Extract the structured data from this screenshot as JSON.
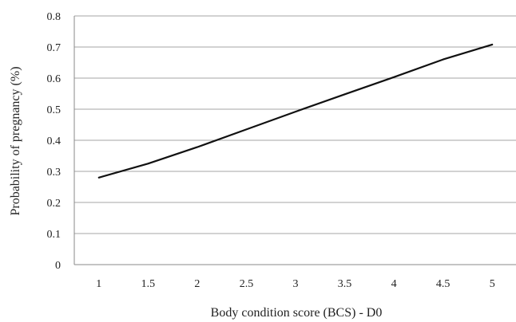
{
  "chart_data": {
    "type": "line",
    "xlabel": "Body condition score (BCS) - D0",
    "ylabel": "Probability of pregnancy (%)",
    "xlim": [
      0.75,
      5.25
    ],
    "ylim": [
      0,
      0.8
    ],
    "x_ticks": [
      "1",
      "1.5",
      "2",
      "2.5",
      "3",
      "3.5",
      "4",
      "4.5",
      "5"
    ],
    "y_ticks": [
      "0",
      "0.1",
      "0.2",
      "0.3",
      "0.4",
      "0.5",
      "0.6",
      "0.7",
      "0.8"
    ],
    "grid": "horizontal",
    "legend": "none",
    "series": [
      {
        "x": [
          1,
          1.5,
          2,
          2.5,
          3,
          3.5,
          4,
          4.5,
          5
        ],
        "y": [
          0.28,
          0.325,
          0.378,
          0.435,
          0.492,
          0.548,
          0.603,
          0.66,
          0.708
        ],
        "color": "#111111"
      }
    ],
    "colors": {
      "grid": "#a6a6a6",
      "axis": "#888888",
      "line": "#111111"
    }
  }
}
